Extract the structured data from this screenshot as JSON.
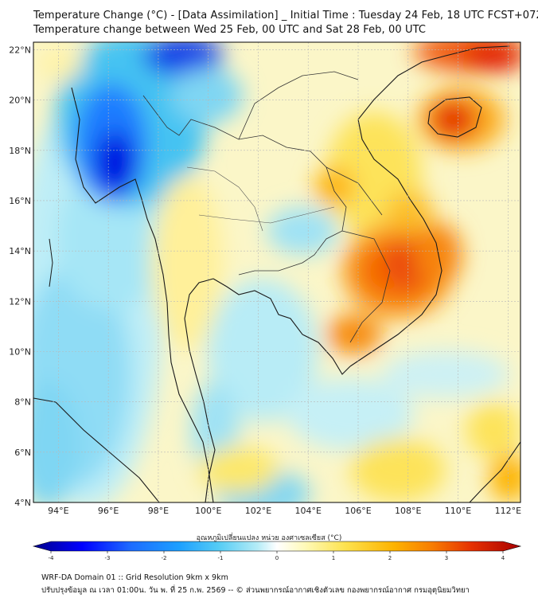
{
  "header": {
    "title_line1": "Temperature Change (°C) - [Data Assimilation] _ Initial Time : Tuesday 24 Feb, 18 UTC FCST+072",
    "title_line2": "Temperature change between Wed 25 Feb, 00 UTC and Sat 28 Feb, 00 UTC"
  },
  "map": {
    "lat_labels": [
      "22°N",
      "20°N",
      "18°N",
      "16°N",
      "14°N",
      "12°N",
      "10°N",
      "8°N",
      "6°N",
      "4°N"
    ],
    "lat_values": [
      22,
      20,
      18,
      16,
      14,
      12,
      10,
      8,
      6,
      4
    ],
    "lon_labels": [
      "94°E",
      "96°E",
      "98°E",
      "100°E",
      "102°E",
      "104°E",
      "106°E",
      "108°E",
      "110°E",
      "112°E"
    ],
    "lon_values": [
      94,
      96,
      98,
      100,
      102,
      104,
      106,
      108,
      110,
      112
    ],
    "lon_range": [
      93,
      112.5
    ],
    "lat_range": [
      4,
      22.3
    ],
    "colors": {
      "background_field": "#fbf6c8",
      "coast": "#1a1a1a",
      "border": "#333333"
    }
  },
  "colorbar": {
    "label": "อุณหภูมิเปลี่ยนแปลง หน่วย องศาเซลเซียส (°C)",
    "tick_labels": [
      "-4",
      "-3",
      "-2",
      "-1",
      "0",
      "1",
      "2",
      "3",
      "4"
    ],
    "min": -4,
    "max": 4,
    "colors": [
      "#00008b",
      "#0000ff",
      "#1e6cff",
      "#1ea0ff",
      "#55ccf5",
      "#b5ecf7",
      "#ffffff",
      "#fff9b5",
      "#fde24f",
      "#fdb300",
      "#f77b00",
      "#e53000",
      "#a80000"
    ]
  },
  "footer": {
    "line1": "WRF-DA Domain 01 :: Grid Resolution 9km x 9km",
    "line2": "ปรับปรุงข้อมูล ณ เวลา 01:00น. วัน พ. ที่ 25 ก.พ. 2569 -- © ส่วนพยากรณ์อากาศเชิงตัวเลข กองพยากรณ์อากาศ กรมอุตุนิยมวิทยา"
  }
}
